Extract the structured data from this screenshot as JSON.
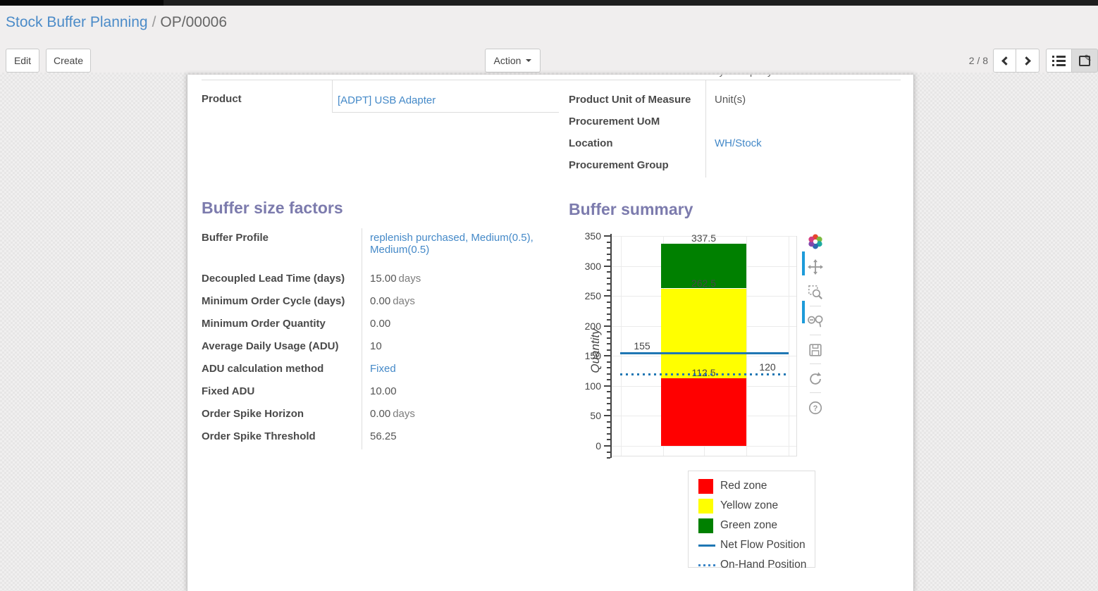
{
  "breadcrumb": {
    "parent": "Stock Buffer Planning",
    "separator": "/",
    "current": "OP/00006"
  },
  "toolbar": {
    "edit": "Edit",
    "create": "Create",
    "action": "Action",
    "pager": "2 / 8"
  },
  "sheet": {
    "clipped_top_value": "My Company",
    "product_group": {
      "rows": [
        {
          "label": "Product",
          "value": "[ADPT] USB Adapter"
        }
      ]
    },
    "info_group": {
      "rows": [
        {
          "label": "Product Unit of Measure",
          "value": "Unit(s)"
        },
        {
          "label": "Procurement UoM",
          "value": ""
        },
        {
          "label": "Location",
          "value": "WH/Stock"
        },
        {
          "label": "Procurement Group",
          "value": ""
        }
      ]
    },
    "buffer_factors": {
      "title": "Buffer size factors",
      "rows": [
        {
          "label": "Buffer Profile",
          "value": "replenish purchased, Medium(0.5), Medium(0.5)",
          "suffix": ""
        },
        {
          "label": "Decoupled Lead Time (days)",
          "value": "15.00",
          "suffix": "days"
        },
        {
          "label": "Minimum Order Cycle (days)",
          "value": "0.00",
          "suffix": "days"
        },
        {
          "label": "Minimum Order Quantity",
          "value": "0.00",
          "suffix": ""
        },
        {
          "label": "Average Daily Usage (ADU)",
          "value": "10",
          "suffix": ""
        },
        {
          "label": "ADU calculation method",
          "value": "Fixed",
          "suffix": ""
        },
        {
          "label": "Fixed ADU",
          "value": "10.00",
          "suffix": ""
        },
        {
          "label": "Order Spike Horizon",
          "value": "0.00",
          "suffix": "days"
        },
        {
          "label": "Order Spike Threshold",
          "value": "56.25",
          "suffix": ""
        }
      ]
    },
    "buffer_summary_title": "Buffer summary"
  },
  "chart_data": {
    "type": "bar",
    "title": "Buffer summary",
    "xlabel": "",
    "ylabel": "Quantity",
    "ylim": [
      0,
      350
    ],
    "ytick_step": 50,
    "minor_tick_step": 10,
    "grid": true,
    "legend_position": "below-right",
    "zones": [
      {
        "name": "Red zone",
        "color": "#ff0000",
        "from": 0,
        "to": 112.5
      },
      {
        "name": "Yellow zone",
        "color": "#ffff00",
        "from": 112.5,
        "to": 262.5
      },
      {
        "name": "Green zone",
        "color": "#008000",
        "from": 262.5,
        "to": 337.5
      }
    ],
    "zone_labels": [
      {
        "text": "337.5",
        "value": 337.5
      },
      {
        "text": "262.5",
        "value": 262.5
      },
      {
        "text": "112.5",
        "value": 112.5
      }
    ],
    "lines": [
      {
        "name": "Net Flow Position",
        "value": 155,
        "label": "155",
        "style": "solid",
        "color": "#1f77b4",
        "label_side": "left"
      },
      {
        "name": "On-Hand Position",
        "value": 120,
        "label": "120",
        "style": "dotted",
        "color": "#1f77b4",
        "label_side": "right"
      }
    ],
    "legend": [
      {
        "label": "Red zone",
        "swatch": "square",
        "color": "#ff0000"
      },
      {
        "label": "Yellow zone",
        "swatch": "square",
        "color": "#ffff00"
      },
      {
        "label": "Green zone",
        "swatch": "square",
        "color": "#008000"
      },
      {
        "label": "Net Flow Position",
        "swatch": "line-solid",
        "color": "#1f77b4"
      },
      {
        "label": "On-Hand Position",
        "swatch": "line-dotted",
        "color": "#1f77b4"
      }
    ],
    "modebar_icons": [
      "plotly-logo",
      "pan",
      "box-zoom",
      "zoom-in-out",
      "save",
      "reset",
      "help"
    ]
  },
  "colors": {
    "link": "#4489c8",
    "heading": "#7c7bad",
    "modebar_active": "#1d9bd9"
  }
}
